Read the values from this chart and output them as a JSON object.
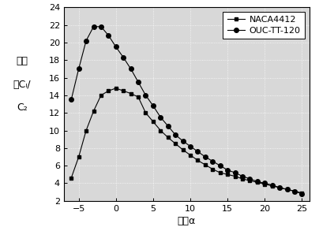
{
  "naca4412_x": [
    -6,
    -5,
    -4,
    -3,
    -2,
    -1,
    0,
    1,
    2,
    3,
    4,
    5,
    6,
    7,
    8,
    9,
    10,
    11,
    12,
    13,
    14,
    15,
    16,
    17,
    18,
    19,
    20,
    21,
    22,
    23,
    24,
    25
  ],
  "naca4412_y": [
    4.6,
    7.0,
    10.0,
    12.2,
    14.0,
    14.5,
    14.8,
    14.5,
    14.2,
    13.8,
    12.0,
    11.0,
    10.0,
    9.2,
    8.5,
    7.8,
    7.2,
    6.6,
    6.1,
    5.6,
    5.2,
    5.0,
    4.8,
    4.5,
    4.3,
    4.1,
    3.9,
    3.7,
    3.5,
    3.3,
    3.1,
    2.9
  ],
  "ouc_x": [
    -6,
    -5,
    -4,
    -3,
    -2,
    -1,
    0,
    1,
    2,
    3,
    4,
    5,
    6,
    7,
    8,
    9,
    10,
    11,
    12,
    13,
    14,
    15,
    16,
    17,
    18,
    19,
    20,
    21,
    22,
    23,
    24,
    25
  ],
  "ouc_y": [
    13.5,
    17.0,
    20.2,
    21.8,
    21.8,
    20.8,
    19.5,
    18.3,
    17.0,
    15.5,
    14.0,
    12.8,
    11.5,
    10.5,
    9.5,
    8.8,
    8.2,
    7.6,
    7.0,
    6.5,
    6.0,
    5.5,
    5.2,
    4.8,
    4.5,
    4.2,
    4.0,
    3.8,
    3.5,
    3.3,
    3.1,
    2.8
  ],
  "xlim": [
    -7,
    26
  ],
  "ylim": [
    2,
    24
  ],
  "xticks": [
    -5,
    0,
    5,
    10,
    15,
    20,
    25
  ],
  "yticks": [
    2,
    4,
    6,
    8,
    10,
    12,
    14,
    16,
    18,
    20,
    22,
    24
  ],
  "legend1": "NACA4412",
  "legend2": "OUC-TT-120",
  "bg_color": "#d8d8d8",
  "fig_color": "#ffffff",
  "label_fontsize": 9,
  "tick_fontsize": 8,
  "legend_fontsize": 8
}
